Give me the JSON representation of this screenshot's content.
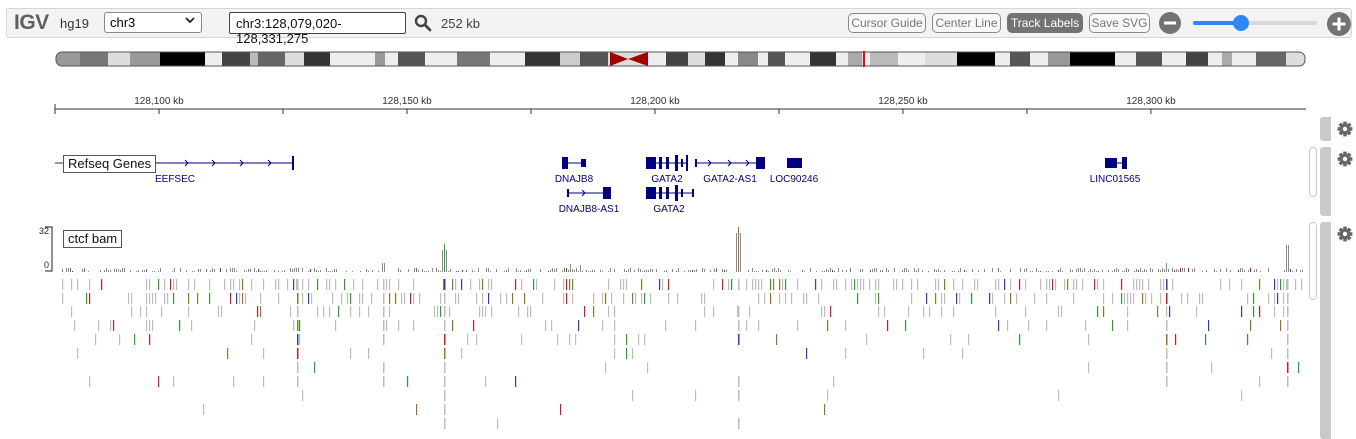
{
  "app": {
    "logo": "IGV",
    "genome": "hg19"
  },
  "toolbar": {
    "chromosome": "chr3",
    "locus": "chr3:128,079,020-128,331,275",
    "size": "252 kb",
    "cursor_guide": "Cursor Guide",
    "center_line": "Center Line",
    "track_labels": "Track Labels",
    "save_svg": "Save SVG",
    "zoom_level": 0.39
  },
  "ruler": {
    "unit": "kb",
    "start": 128079020,
    "end": 128331275,
    "ticks": [
      "128,100 kb",
      "128,150 kb",
      "128,200 kb",
      "128,250 kb",
      "128,300 kb"
    ],
    "tick_positions": [
      128100000,
      128150000,
      128200000,
      128250000,
      128300000
    ]
  },
  "tracks": {
    "refseq": {
      "label": "Refseq Genes",
      "genes": [
        "EEFSEC",
        "DNAJB8",
        "DNAJB8-AS1",
        "GATA2",
        "GATA2",
        "GATA2-AS1",
        "LOC90246",
        "LINC01565"
      ]
    },
    "bam": {
      "label": "ctcf bam",
      "range_max": "32",
      "range_min": "0"
    }
  },
  "colors": {
    "gene": "#000080",
    "centromere": "#a00000",
    "slider": "#2f86f6",
    "coverage": "#8a8a8a",
    "read": "#bdbdbd",
    "mismatch_red": "#d01c1c",
    "mismatch_green": "#2aa02a",
    "mismatch_blue": "#2a3fb0",
    "mismatch_brown": "#a0702a"
  }
}
